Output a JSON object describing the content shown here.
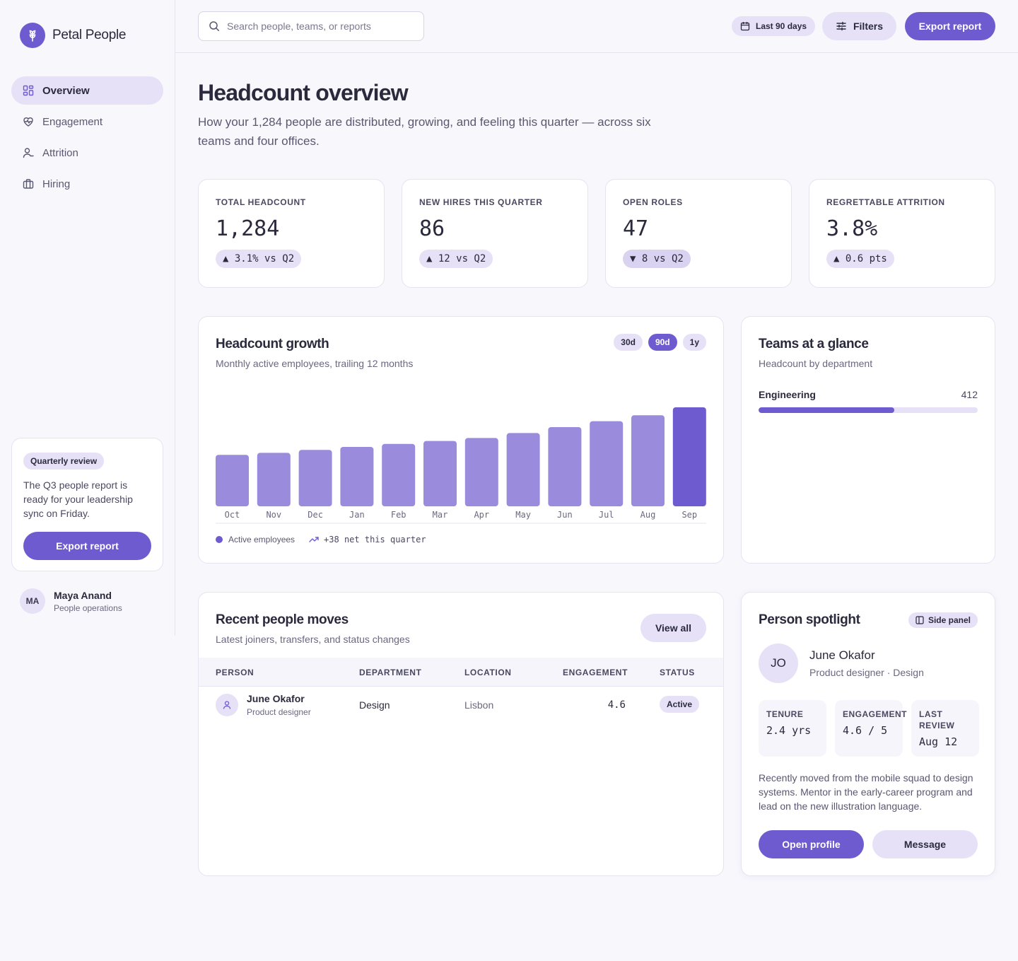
{
  "brand": {
    "name": "Petal People",
    "logo_icon": "flower-icon"
  },
  "colors": {
    "accent": "#6e5bcf",
    "accent_soft": "#e6e1f7",
    "background": "#f8f7fc"
  },
  "sidebar": {
    "items": [
      {
        "label": "Overview",
        "icon": "grid-icon",
        "active": true
      },
      {
        "label": "Engagement",
        "icon": "heart-pulse-icon",
        "active": false
      },
      {
        "label": "Attrition",
        "icon": "user-minus-icon",
        "active": false
      },
      {
        "label": "Hiring",
        "icon": "briefcase-icon",
        "active": false
      }
    ],
    "promo": {
      "badge": "Quarterly review",
      "text": "The Q3 people report is ready for your leadership sync on Friday.",
      "button": "Export report"
    },
    "user": {
      "initials": "MA",
      "name": "Maya Anand",
      "role": "People operations"
    }
  },
  "topbar": {
    "search_placeholder": "Search people, teams, or reports",
    "date_range": "Last 90 days",
    "filters_label": "Filters",
    "export_label": "Export report"
  },
  "header": {
    "title": "Headcount overview",
    "subtitle": "How your 1,284 people are distributed, growing, and feeling this quarter — across six teams and four offices."
  },
  "kpis": [
    {
      "label": "TOTAL HEADCOUNT",
      "value": "1,284",
      "delta": "▲ 3.1% vs Q2",
      "direction": "up"
    },
    {
      "label": "NEW HIRES THIS QUARTER",
      "value": "86",
      "delta": "▲ 12 vs Q2",
      "direction": "up"
    },
    {
      "label": "OPEN ROLES",
      "value": "47",
      "delta": "▼ 8 vs Q2",
      "direction": "down"
    },
    {
      "label": "REGRETTABLE ATTRITION",
      "value": "3.8%",
      "delta": "▲ 0.6 pts",
      "direction": "up"
    }
  ],
  "growth": {
    "title": "Headcount growth",
    "subtitle": "Monthly active employees, trailing 12 months",
    "ranges": [
      {
        "label": "30d",
        "active": false
      },
      {
        "label": "90d",
        "active": true
      },
      {
        "label": "1y",
        "active": false
      }
    ],
    "legend_label": "Active employees",
    "trend_note": "+38 net this quarter"
  },
  "chart_data": {
    "type": "bar",
    "categories": [
      "Oct",
      "Nov",
      "Dec",
      "Jan",
      "Feb",
      "Mar",
      "Apr",
      "May",
      "Jun",
      "Jul",
      "Aug",
      "Sep"
    ],
    "series": [
      {
        "name": "Active employees",
        "values": [
          52,
          54,
          57,
          60,
          63,
          66,
          69,
          74,
          80,
          86,
          92,
          100
        ]
      }
    ],
    "highlighted_category": "Sep",
    "title": "Headcount growth",
    "subtitle": "Monthly active employees, trailing 12 months",
    "ylim": [
      0,
      100
    ],
    "grid": false,
    "legend": "bottom-left"
  },
  "teams": {
    "title": "Teams at a glance",
    "subtitle": "Headcount by department",
    "items": [
      {
        "name": "Engineering",
        "count": "412",
        "share": 0.62
      }
    ]
  },
  "moves": {
    "title": "Recent people moves",
    "subtitle": "Latest joiners, transfers, and status changes",
    "view_all": "View all",
    "columns": [
      "PERSON",
      "DEPARTMENT",
      "LOCATION",
      "ENGAGEMENT",
      "STATUS"
    ],
    "rows": [
      {
        "name": "June Okafor",
        "role": "Product designer",
        "department": "Design",
        "location": "Lisbon",
        "engagement": "4.6",
        "status": "Active"
      }
    ]
  },
  "spotlight": {
    "title": "Person spotlight",
    "side_panel": "Side panel",
    "initials": "JO",
    "name": "June Okafor",
    "role": "Product designer · Design",
    "stats": [
      {
        "label": "TENURE",
        "value": "2.4 yrs"
      },
      {
        "label": "ENGAGEMENT",
        "value": "4.6 / 5"
      },
      {
        "label": "LAST REVIEW",
        "value": "Aug 12"
      }
    ],
    "bio": "Recently moved from the mobile squad to design systems. Mentor in the early-career program and lead on the new illustration language.",
    "primary_action": "Open profile",
    "secondary_action": "Message"
  }
}
